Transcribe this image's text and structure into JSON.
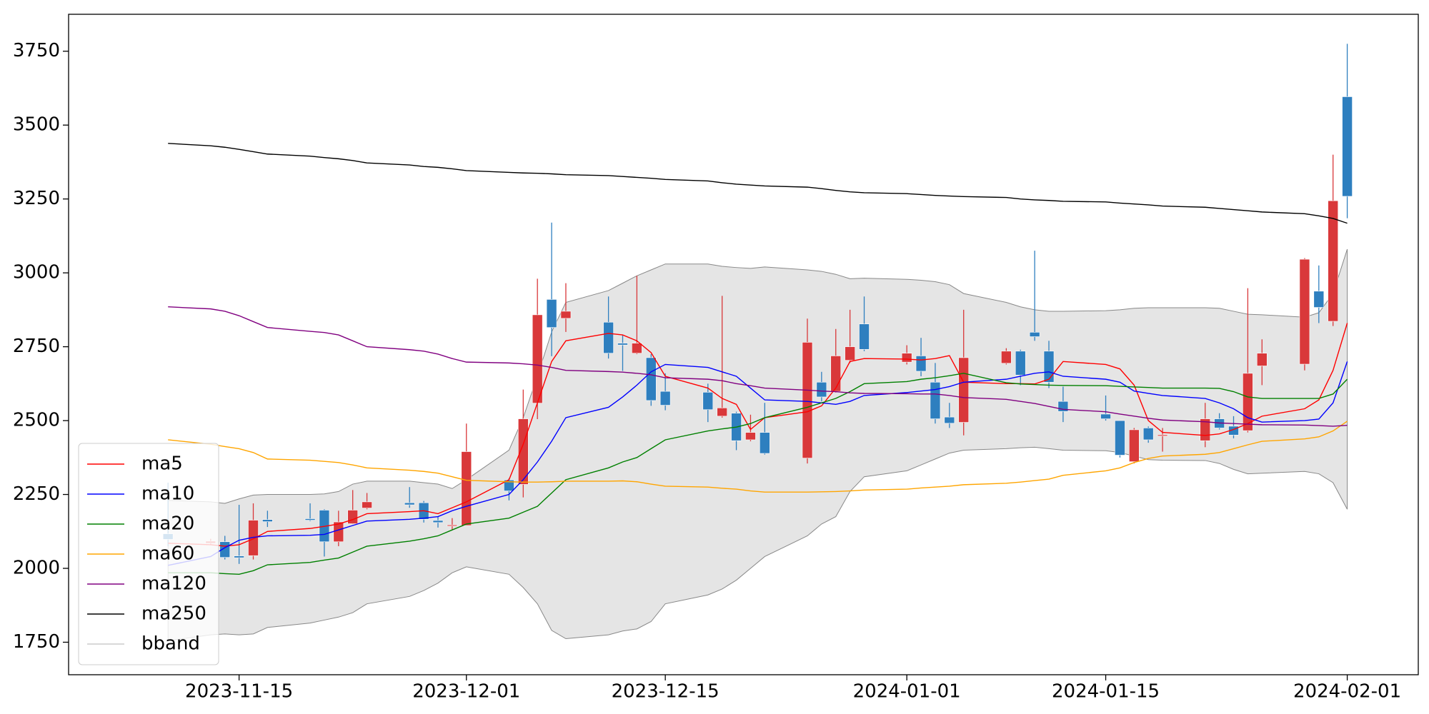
{
  "chart_data": {
    "type": "candlestick",
    "x": [
      "2023-11-10",
      "2023-11-13",
      "2023-11-14",
      "2023-11-15",
      "2023-11-16",
      "2023-11-17",
      "2023-11-20",
      "2023-11-21",
      "2023-11-22",
      "2023-11-23",
      "2023-11-24",
      "2023-11-27",
      "2023-11-28",
      "2023-11-29",
      "2023-11-30",
      "2023-12-01",
      "2023-12-04",
      "2023-12-05",
      "2023-12-06",
      "2023-12-07",
      "2023-12-08",
      "2023-12-11",
      "2023-12-12",
      "2023-12-13",
      "2023-12-14",
      "2023-12-15",
      "2023-12-18",
      "2023-12-19",
      "2023-12-20",
      "2023-12-21",
      "2023-12-22",
      "2023-12-25",
      "2023-12-26",
      "2023-12-27",
      "2023-12-28",
      "2023-12-29",
      "2024-01-01",
      "2024-01-02",
      "2024-01-03",
      "2024-01-04",
      "2024-01-05",
      "2024-01-08",
      "2024-01-09",
      "2024-01-10",
      "2024-01-11",
      "2024-01-12",
      "2024-01-15",
      "2024-01-16",
      "2024-01-17",
      "2024-01-18",
      "2024-01-19",
      "2024-01-22",
      "2024-01-23",
      "2024-01-24",
      "2024-01-25",
      "2024-01-26",
      "2024-01-29",
      "2024-01-30",
      "2024-01-31",
      "2024-02-01"
    ],
    "open": [
      2117,
      2085,
      2090,
      2042,
      2043,
      2165,
      2168,
      2197,
      2090,
      2151,
      2204,
      2222,
      2222,
      2162,
      2143,
      2145,
      2299,
      2284,
      2559,
      2910,
      2846,
      2833,
      2762,
      2728,
      2713,
      2599,
      2596,
      2515,
      2525,
      2435,
      2460,
      2373,
      2630,
      2599,
      2704,
      2827,
      2698,
      2719,
      2630,
      2512,
      2494,
      2694,
      2735,
      2799,
      2735,
      2565,
      2522,
      2500,
      2361,
      2475,
      2448,
      2432,
      2506,
      2481,
      2466,
      2685,
      2691,
      2938,
      2836,
      3596
    ],
    "high": [
      2290,
      2100,
      2110,
      2215,
      2220,
      2195,
      2220,
      2200,
      2195,
      2265,
      2255,
      2275,
      2228,
      2175,
      2170,
      2490,
      2305,
      2605,
      2980,
      3170,
      2965,
      2920,
      2790,
      2990,
      2725,
      2660,
      2625,
      2922,
      2530,
      2520,
      2560,
      2845,
      2665,
      2810,
      2875,
      2920,
      2755,
      2780,
      2695,
      2560,
      2875,
      2745,
      2740,
      3075,
      2770,
      2615,
      2585,
      2500,
      2475,
      2480,
      2475,
      2560,
      2525,
      2515,
      2948,
      2775,
      3050,
      3025,
      3400,
      3775
    ],
    "low": [
      2075,
      2080,
      2030,
      2015,
      2030,
      2140,
      2160,
      2040,
      2075,
      2150,
      2200,
      2205,
      2155,
      2138,
      2130,
      2145,
      2230,
      2240,
      2505,
      2718,
      2800,
      2710,
      2668,
      2725,
      2550,
      2535,
      2495,
      2510,
      2400,
      2430,
      2385,
      2355,
      2565,
      2595,
      2695,
      2735,
      2690,
      2650,
      2490,
      2475,
      2450,
      2690,
      2620,
      2770,
      2610,
      2495,
      2500,
      2375,
      2355,
      2425,
      2395,
      2410,
      2470,
      2440,
      2460,
      2620,
      2670,
      2830,
      2820,
      3185
    ],
    "close": [
      2098,
      2092,
      2037,
      2036,
      2163,
      2158,
      2163,
      2090,
      2157,
      2197,
      2225,
      2215,
      2166,
      2155,
      2147,
      2395,
      2262,
      2506,
      2858,
      2815,
      2870,
      2728,
      2756,
      2762,
      2568,
      2552,
      2537,
      2543,
      2432,
      2460,
      2389,
      2765,
      2580,
      2719,
      2750,
      2741,
      2728,
      2667,
      2506,
      2491,
      2713,
      2735,
      2654,
      2784,
      2630,
      2531,
      2506,
      2383,
      2469,
      2435,
      2452,
      2506,
      2475,
      2451,
      2660,
      2728,
      3046,
      2883,
      3244,
      3259
    ],
    "up_color": "#d9383a",
    "down_color": "#2e7fbf",
    "lines": [
      {
        "name": "ma5",
        "color": "#ff0000",
        "values": [
          2085,
          2080,
          2075,
          2080,
          2100,
          2125,
          2135,
          2142,
          2150,
          2165,
          2185,
          2192,
          2195,
          2185,
          2205,
          2225,
          2300,
          2420,
          2560,
          2700,
          2770,
          2795,
          2790,
          2770,
          2730,
          2650,
          2610,
          2575,
          2555,
          2470,
          2510,
          2530,
          2550,
          2610,
          2700,
          2710,
          2708,
          2705,
          2710,
          2720,
          2630,
          2625,
          2625,
          2624,
          2640,
          2700,
          2690,
          2675,
          2620,
          2500,
          2460,
          2450,
          2455,
          2470,
          2490,
          2515,
          2540,
          2570,
          2670,
          2830
        ]
      },
      {
        "name": "ma10",
        "color": "#0000ff",
        "values": [
          2010,
          2040,
          2070,
          2095,
          2105,
          2110,
          2112,
          2115,
          2130,
          2145,
          2160,
          2166,
          2170,
          2175,
          2195,
          2210,
          2250,
          2300,
          2360,
          2430,
          2510,
          2545,
          2580,
          2620,
          2665,
          2690,
          2680,
          2665,
          2650,
          2610,
          2570,
          2565,
          2560,
          2555,
          2565,
          2585,
          2595,
          2600,
          2605,
          2615,
          2630,
          2640,
          2650,
          2660,
          2665,
          2650,
          2640,
          2630,
          2600,
          2592,
          2585,
          2575,
          2560,
          2540,
          2510,
          2495,
          2500,
          2505,
          2560,
          2700
        ]
      },
      {
        "name": "ma20",
        "color": "#008000",
        "values": [
          1985,
          1985,
          1982,
          1980,
          1992,
          2012,
          2020,
          2028,
          2035,
          2055,
          2075,
          2092,
          2100,
          2110,
          2130,
          2150,
          2170,
          2190,
          2210,
          2255,
          2300,
          2340,
          2360,
          2375,
          2405,
          2435,
          2465,
          2472,
          2478,
          2490,
          2510,
          2545,
          2560,
          2575,
          2598,
          2625,
          2632,
          2640,
          2645,
          2652,
          2660,
          2628,
          2624,
          2622,
          2620,
          2619,
          2618,
          2616,
          2614,
          2612,
          2610,
          2610,
          2609,
          2598,
          2580,
          2575,
          2575,
          2575,
          2590,
          2640
        ]
      },
      {
        "name": "ma60",
        "color": "#ffa500",
        "values": [
          2435,
          2420,
          2412,
          2405,
          2392,
          2370,
          2366,
          2362,
          2358,
          2350,
          2340,
          2332,
          2328,
          2322,
          2310,
          2298,
          2293,
          2292,
          2292,
          2293,
          2295,
          2295,
          2296,
          2293,
          2285,
          2278,
          2275,
          2271,
          2268,
          2262,
          2258,
          2258,
          2259,
          2260,
          2262,
          2265,
          2268,
          2272,
          2275,
          2278,
          2283,
          2288,
          2292,
          2297,
          2302,
          2315,
          2330,
          2340,
          2358,
          2372,
          2380,
          2386,
          2392,
          2405,
          2418,
          2430,
          2438,
          2445,
          2465,
          2498
        ]
      },
      {
        "name": "ma120",
        "color": "#800080",
        "values": [
          2885,
          2878,
          2870,
          2855,
          2835,
          2815,
          2802,
          2798,
          2790,
          2770,
          2750,
          2740,
          2735,
          2725,
          2710,
          2698,
          2695,
          2692,
          2688,
          2680,
          2670,
          2666,
          2664,
          2660,
          2655,
          2645,
          2640,
          2635,
          2625,
          2618,
          2610,
          2603,
          2600,
          2598,
          2594,
          2592,
          2591,
          2590,
          2590,
          2585,
          2578,
          2572,
          2565,
          2558,
          2548,
          2538,
          2530,
          2522,
          2515,
          2508,
          2502,
          2496,
          2492,
          2490,
          2488,
          2486,
          2485,
          2483,
          2481,
          2484
        ]
      },
      {
        "name": "ma250",
        "color": "#000000",
        "values": [
          3438,
          3430,
          3425,
          3418,
          3410,
          3402,
          3395,
          3390,
          3386,
          3380,
          3372,
          3365,
          3360,
          3357,
          3352,
          3346,
          3340,
          3338,
          3337,
          3335,
          3332,
          3329,
          3326,
          3323,
          3320,
          3316,
          3311,
          3305,
          3300,
          3297,
          3294,
          3290,
          3285,
          3279,
          3274,
          3271,
          3268,
          3265,
          3262,
          3260,
          3258,
          3255,
          3250,
          3247,
          3245,
          3242,
          3240,
          3236,
          3233,
          3230,
          3226,
          3222,
          3218,
          3214,
          3210,
          3206,
          3200,
          3193,
          3184,
          3168
        ]
      }
    ],
    "bband": {
      "name": "bband",
      "color": "#d3d3d3",
      "upper": [
        2230,
        2225,
        2220,
        2235,
        2248,
        2250,
        2250,
        2252,
        2260,
        2285,
        2295,
        2295,
        2290,
        2285,
        2270,
        2300,
        2400,
        2510,
        2650,
        2800,
        2900,
        2940,
        2965,
        2990,
        3010,
        3030,
        3030,
        3022,
        3018,
        3015,
        3020,
        3010,
        3005,
        2995,
        2980,
        2982,
        2978,
        2975,
        2970,
        2960,
        2930,
        2900,
        2885,
        2875,
        2870,
        2870,
        2872,
        2875,
        2880,
        2882,
        2882,
        2882,
        2880,
        2870,
        2860,
        2858,
        2850,
        2865,
        2930,
        3080
      ],
      "lower": [
        1755,
        1775,
        1778,
        1775,
        1778,
        1800,
        1815,
        1825,
        1835,
        1850,
        1880,
        1905,
        1925,
        1950,
        1985,
        2005,
        1980,
        1935,
        1880,
        1790,
        1762,
        1775,
        1788,
        1795,
        1820,
        1880,
        1910,
        1930,
        1960,
        2000,
        2040,
        2110,
        2150,
        2175,
        2260,
        2310,
        2330,
        2350,
        2370,
        2390,
        2400,
        2405,
        2408,
        2410,
        2405,
        2400,
        2398,
        2392,
        2380,
        2368,
        2366,
        2365,
        2355,
        2335,
        2320,
        2322,
        2328,
        2320,
        2290,
        2200
      ]
    },
    "xlim": [
      "2023-11-03",
      "2024-02-06"
    ],
    "xticks": [
      "2023-11-15",
      "2023-12-01",
      "2023-12-15",
      "2024-01-01",
      "2024-01-15",
      "2024-02-01"
    ],
    "ylim": [
      1640,
      3875
    ],
    "yticks": [
      1750,
      2000,
      2250,
      2500,
      2750,
      3000,
      3250,
      3500,
      3750
    ],
    "legend": "lower left"
  }
}
